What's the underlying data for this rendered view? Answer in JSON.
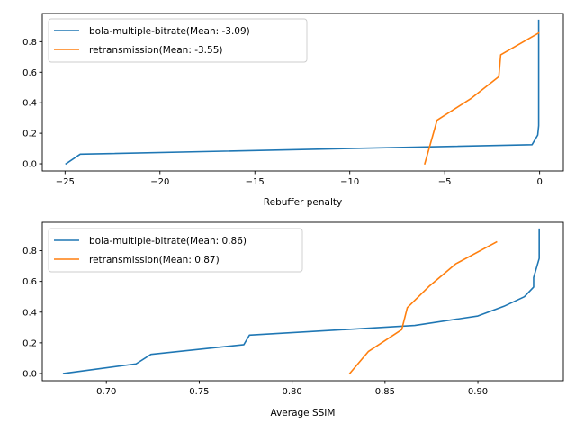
{
  "chart_data": [
    {
      "type": "line",
      "xlabel": "Rebuffer penalty",
      "ylabel": "",
      "xlim": [
        -26.2,
        1.25
      ],
      "ylim": [
        -0.047,
        0.985
      ],
      "xticks": [
        -25,
        -20,
        -15,
        -10,
        -5,
        0
      ],
      "xtick_labels": [
        "−25",
        "−20",
        "−15",
        "−10",
        "−5",
        "0"
      ],
      "yticks": [
        0.0,
        0.2,
        0.4,
        0.6,
        0.8
      ],
      "ytick_labels": [
        "0.0",
        "0.2",
        "0.4",
        "0.6",
        "0.8"
      ],
      "grid": false,
      "legend_position": "upper-left",
      "series": [
        {
          "name": "bola-multiple-bitrate(Mean: -3.09)",
          "color": "#1f77b4",
          "x": [
            -24.95,
            -24.2,
            -0.4,
            -0.1,
            -0.05,
            -0.05
          ],
          "y": [
            0.0,
            0.063,
            0.125,
            0.188,
            0.25,
            0.94
          ]
        },
        {
          "name": "retransmission(Mean: -3.55)",
          "color": "#ff7f0e",
          "x": [
            -6.05,
            -5.4,
            -3.6,
            -2.15,
            -2.05,
            -0.05
          ],
          "y": [
            0.0,
            0.286,
            0.429,
            0.571,
            0.714,
            0.857
          ]
        }
      ]
    },
    {
      "type": "line",
      "xlabel": "Average SSIM",
      "ylabel": "",
      "xlim": [
        0.6655,
        0.946
      ],
      "ylim": [
        -0.047,
        0.985
      ],
      "xticks": [
        0.7,
        0.75,
        0.8,
        0.85,
        0.9
      ],
      "xtick_labels": [
        "0.70",
        "0.75",
        "0.80",
        "0.85",
        "0.90"
      ],
      "yticks": [
        0.0,
        0.2,
        0.4,
        0.6,
        0.8
      ],
      "ytick_labels": [
        "0.0",
        "0.2",
        "0.4",
        "0.6",
        "0.8"
      ],
      "grid": false,
      "legend_position": "upper-left",
      "series": [
        {
          "name": "bola-multiple-bitrate(Mean: 0.86)",
          "color": "#1f77b4",
          "x": [
            0.677,
            0.716,
            0.724,
            0.774,
            0.777,
            0.866,
            0.9,
            0.914,
            0.925,
            0.93,
            0.93,
            0.933,
            0.933
          ],
          "y": [
            0.0,
            0.063,
            0.125,
            0.188,
            0.25,
            0.313,
            0.375,
            0.438,
            0.5,
            0.563,
            0.625,
            0.75,
            0.94
          ]
        },
        {
          "name": "retransmission(Mean: 0.87)",
          "color": "#ff7f0e",
          "x": [
            0.831,
            0.841,
            0.859,
            0.862,
            0.874,
            0.888,
            0.91
          ],
          "y": [
            0.0,
            0.143,
            0.286,
            0.429,
            0.571,
            0.714,
            0.857
          ]
        }
      ]
    }
  ]
}
